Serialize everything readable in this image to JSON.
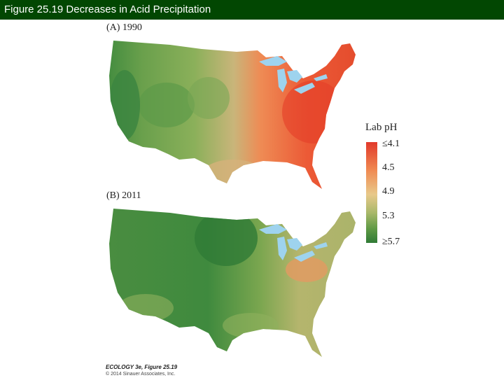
{
  "header": {
    "title": "Figure 25.19  Decreases in Acid Precipitation"
  },
  "panels": [
    {
      "label": "(A)  1990"
    },
    {
      "label": "(B)  2011"
    }
  ],
  "legend": {
    "title": "Lab pH",
    "ticks": [
      "≤4.1",
      "4.5",
      "4.9",
      "5.3",
      "≥5.7"
    ]
  },
  "credit": {
    "line1": "ECOLOGY 3e, Figure 25.19",
    "line2": "© 2014 Sinauer Associates, Inc."
  },
  "colors": {
    "header_bg": "#024702",
    "low_ph": "#e1392a",
    "mid_ph": "#e8c98a",
    "high_ph": "#2f7a36",
    "lakes": "#9ed3ee"
  }
}
